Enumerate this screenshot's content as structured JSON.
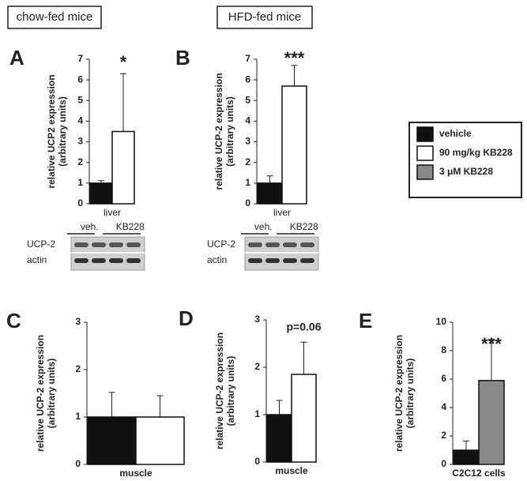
{
  "headers": [
    "chow-fed mice",
    "HFD-fed mice"
  ],
  "legend": {
    "items": [
      {
        "name": "vehicle",
        "color": "#111111"
      },
      {
        "name": "90 mg/kg KB228",
        "color": "#ffffff"
      },
      {
        "name": "3 μM KB228",
        "color": "#888888"
      }
    ]
  },
  "chart_data": [
    {
      "type": "bar",
      "label": "A",
      "ylabel": [
        "relative UCP2 expression",
        "(arbitrary units)"
      ],
      "xlabel": "liver",
      "values": [
        1,
        3.5
      ],
      "errors": [
        0.12,
        2.8
      ],
      "colors": [
        "#111111",
        "#ffffff"
      ],
      "ylim": [
        0,
        7
      ],
      "yticks": [
        0,
        1,
        2,
        3,
        4,
        5,
        6,
        7
      ],
      "annotation": "*",
      "blot": {
        "lanes": [
          "veh.",
          "KB228"
        ],
        "rows": [
          "UCP-2",
          "actin"
        ]
      }
    },
    {
      "type": "bar",
      "label": "B",
      "ylabel": [
        "relative UCP-2 expression",
        "(arbitrary units)"
      ],
      "xlabel": "liver",
      "values": [
        1,
        5.7
      ],
      "errors": [
        0.35,
        1.0
      ],
      "colors": [
        "#111111",
        "#ffffff"
      ],
      "ylim": [
        0,
        7
      ],
      "yticks": [
        0,
        1,
        2,
        3,
        4,
        5,
        6,
        7
      ],
      "annotation": "***",
      "blot": {
        "lanes": [
          "veh.",
          "KB228"
        ],
        "rows": [
          "UCP-2",
          "actin"
        ]
      }
    },
    {
      "type": "bar",
      "label": "C",
      "ylabel": [
        "relative UCP-2 expression",
        "(arbitrary units)"
      ],
      "xlabel": "muscle",
      "values": [
        1,
        1
      ],
      "errors": [
        0.52,
        0.45
      ],
      "colors": [
        "#111111",
        "#ffffff"
      ],
      "ylim": [
        0,
        3
      ],
      "yticks": [
        0,
        1,
        2,
        3
      ]
    },
    {
      "type": "bar",
      "label": "D",
      "ylabel": [
        "relative UCP-2 expression",
        "(arbitrary units)"
      ],
      "xlabel": "muscle",
      "values": [
        1,
        1.85
      ],
      "errors": [
        0.3,
        0.68
      ],
      "colors": [
        "#111111",
        "#ffffff"
      ],
      "ylim": [
        0,
        3
      ],
      "yticks": [
        0,
        1,
        2,
        3
      ],
      "annotation": "p=0.06"
    },
    {
      "type": "bar",
      "label": "E",
      "ylabel": [
        "relative UCP-2 expression",
        "(arbitrary units)"
      ],
      "xlabel": "C2C12 cells",
      "values": [
        1,
        5.9
      ],
      "errors": [
        0.65,
        2.9
      ],
      "colors": [
        "#111111",
        "#888888"
      ],
      "ylim": [
        0,
        10
      ],
      "yticks": [
        0,
        2,
        4,
        6,
        8,
        10
      ],
      "annotation": "***"
    }
  ]
}
